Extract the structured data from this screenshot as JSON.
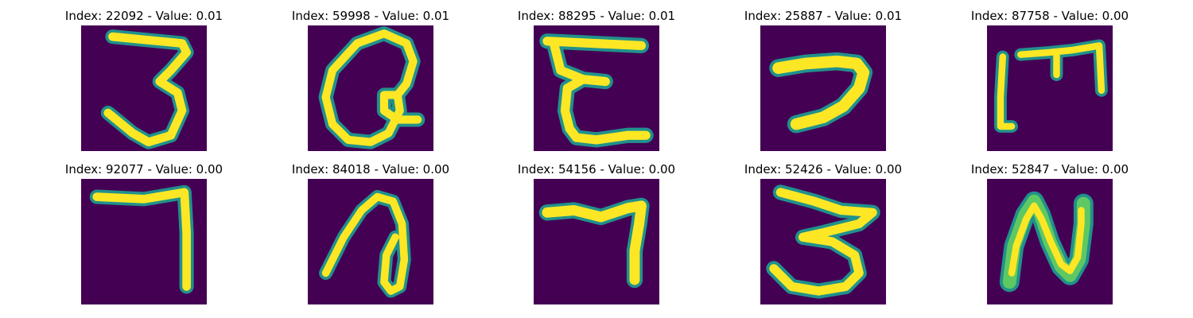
{
  "colors": {
    "background": "#440154",
    "stroke_core": "#fde725",
    "stroke_edge": "#21918c",
    "stroke_mid": "#5ec962"
  },
  "panels": [
    {
      "title": "Index: 22092 - Value: 0.01"
    },
    {
      "title": "Index: 59998 - Value: 0.01"
    },
    {
      "title": "Index: 88295 - Value: 0.01"
    },
    {
      "title": "Index: 25887 - Value: 0.01"
    },
    {
      "title": "Index: 87758 - Value: 0.00"
    },
    {
      "title": "Index: 92077 - Value: 0.00"
    },
    {
      "title": "Index: 84018 - Value: 0.00"
    },
    {
      "title": "Index: 54156 - Value: 0.00"
    },
    {
      "title": "Index: 52426 - Value: 0.00"
    },
    {
      "title": "Index: 52847 - Value: 0.00"
    }
  ]
}
